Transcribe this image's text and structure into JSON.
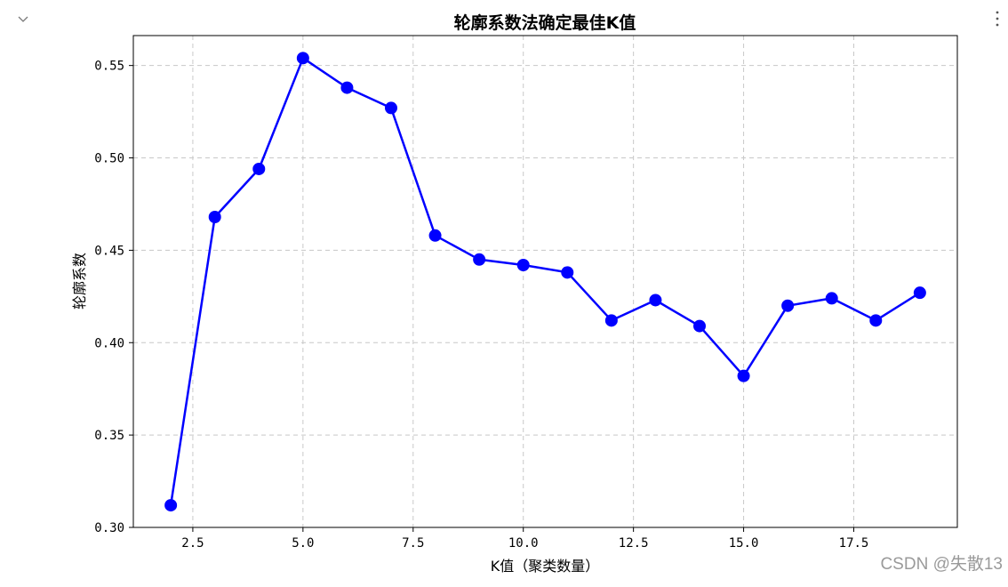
{
  "chart_data": {
    "type": "line",
    "title": "轮廓系数法确定最佳K值",
    "xlabel": "K值（聚类数量）",
    "ylabel": "轮廓系数",
    "x": [
      2,
      3,
      4,
      5,
      6,
      7,
      8,
      9,
      10,
      11,
      12,
      13,
      14,
      15,
      16,
      17,
      18,
      19
    ],
    "series": [
      {
        "name": "",
        "color": "#0000ff",
        "marker": "circle",
        "values": [
          0.312,
          0.468,
          0.494,
          0.554,
          0.538,
          0.527,
          0.458,
          0.445,
          0.442,
          0.438,
          0.412,
          0.423,
          0.409,
          0.382,
          0.42,
          0.424,
          0.412,
          0.427
        ]
      }
    ],
    "xlim": [
      1.15,
      19.85
    ],
    "ylim": [
      0.3,
      0.5662
    ],
    "xticks": [
      2.5,
      5.0,
      7.5,
      10.0,
      12.5,
      15.0,
      17.5
    ],
    "xtick_labels": [
      "2.5",
      "5.0",
      "7.5",
      "10.0",
      "12.5",
      "15.0",
      "17.5"
    ],
    "yticks": [
      0.3,
      0.35,
      0.4,
      0.45,
      0.5,
      0.55
    ],
    "ytick_labels": [
      "0.30",
      "0.35",
      "0.40",
      "0.45",
      "0.50",
      "0.55"
    ],
    "grid": true,
    "grid_style": "dashed"
  },
  "controls": {
    "collapse_icon": "chevron-down-icon",
    "menu_icon": "more-vertical-icon"
  },
  "watermark": "CSDN @失散13"
}
